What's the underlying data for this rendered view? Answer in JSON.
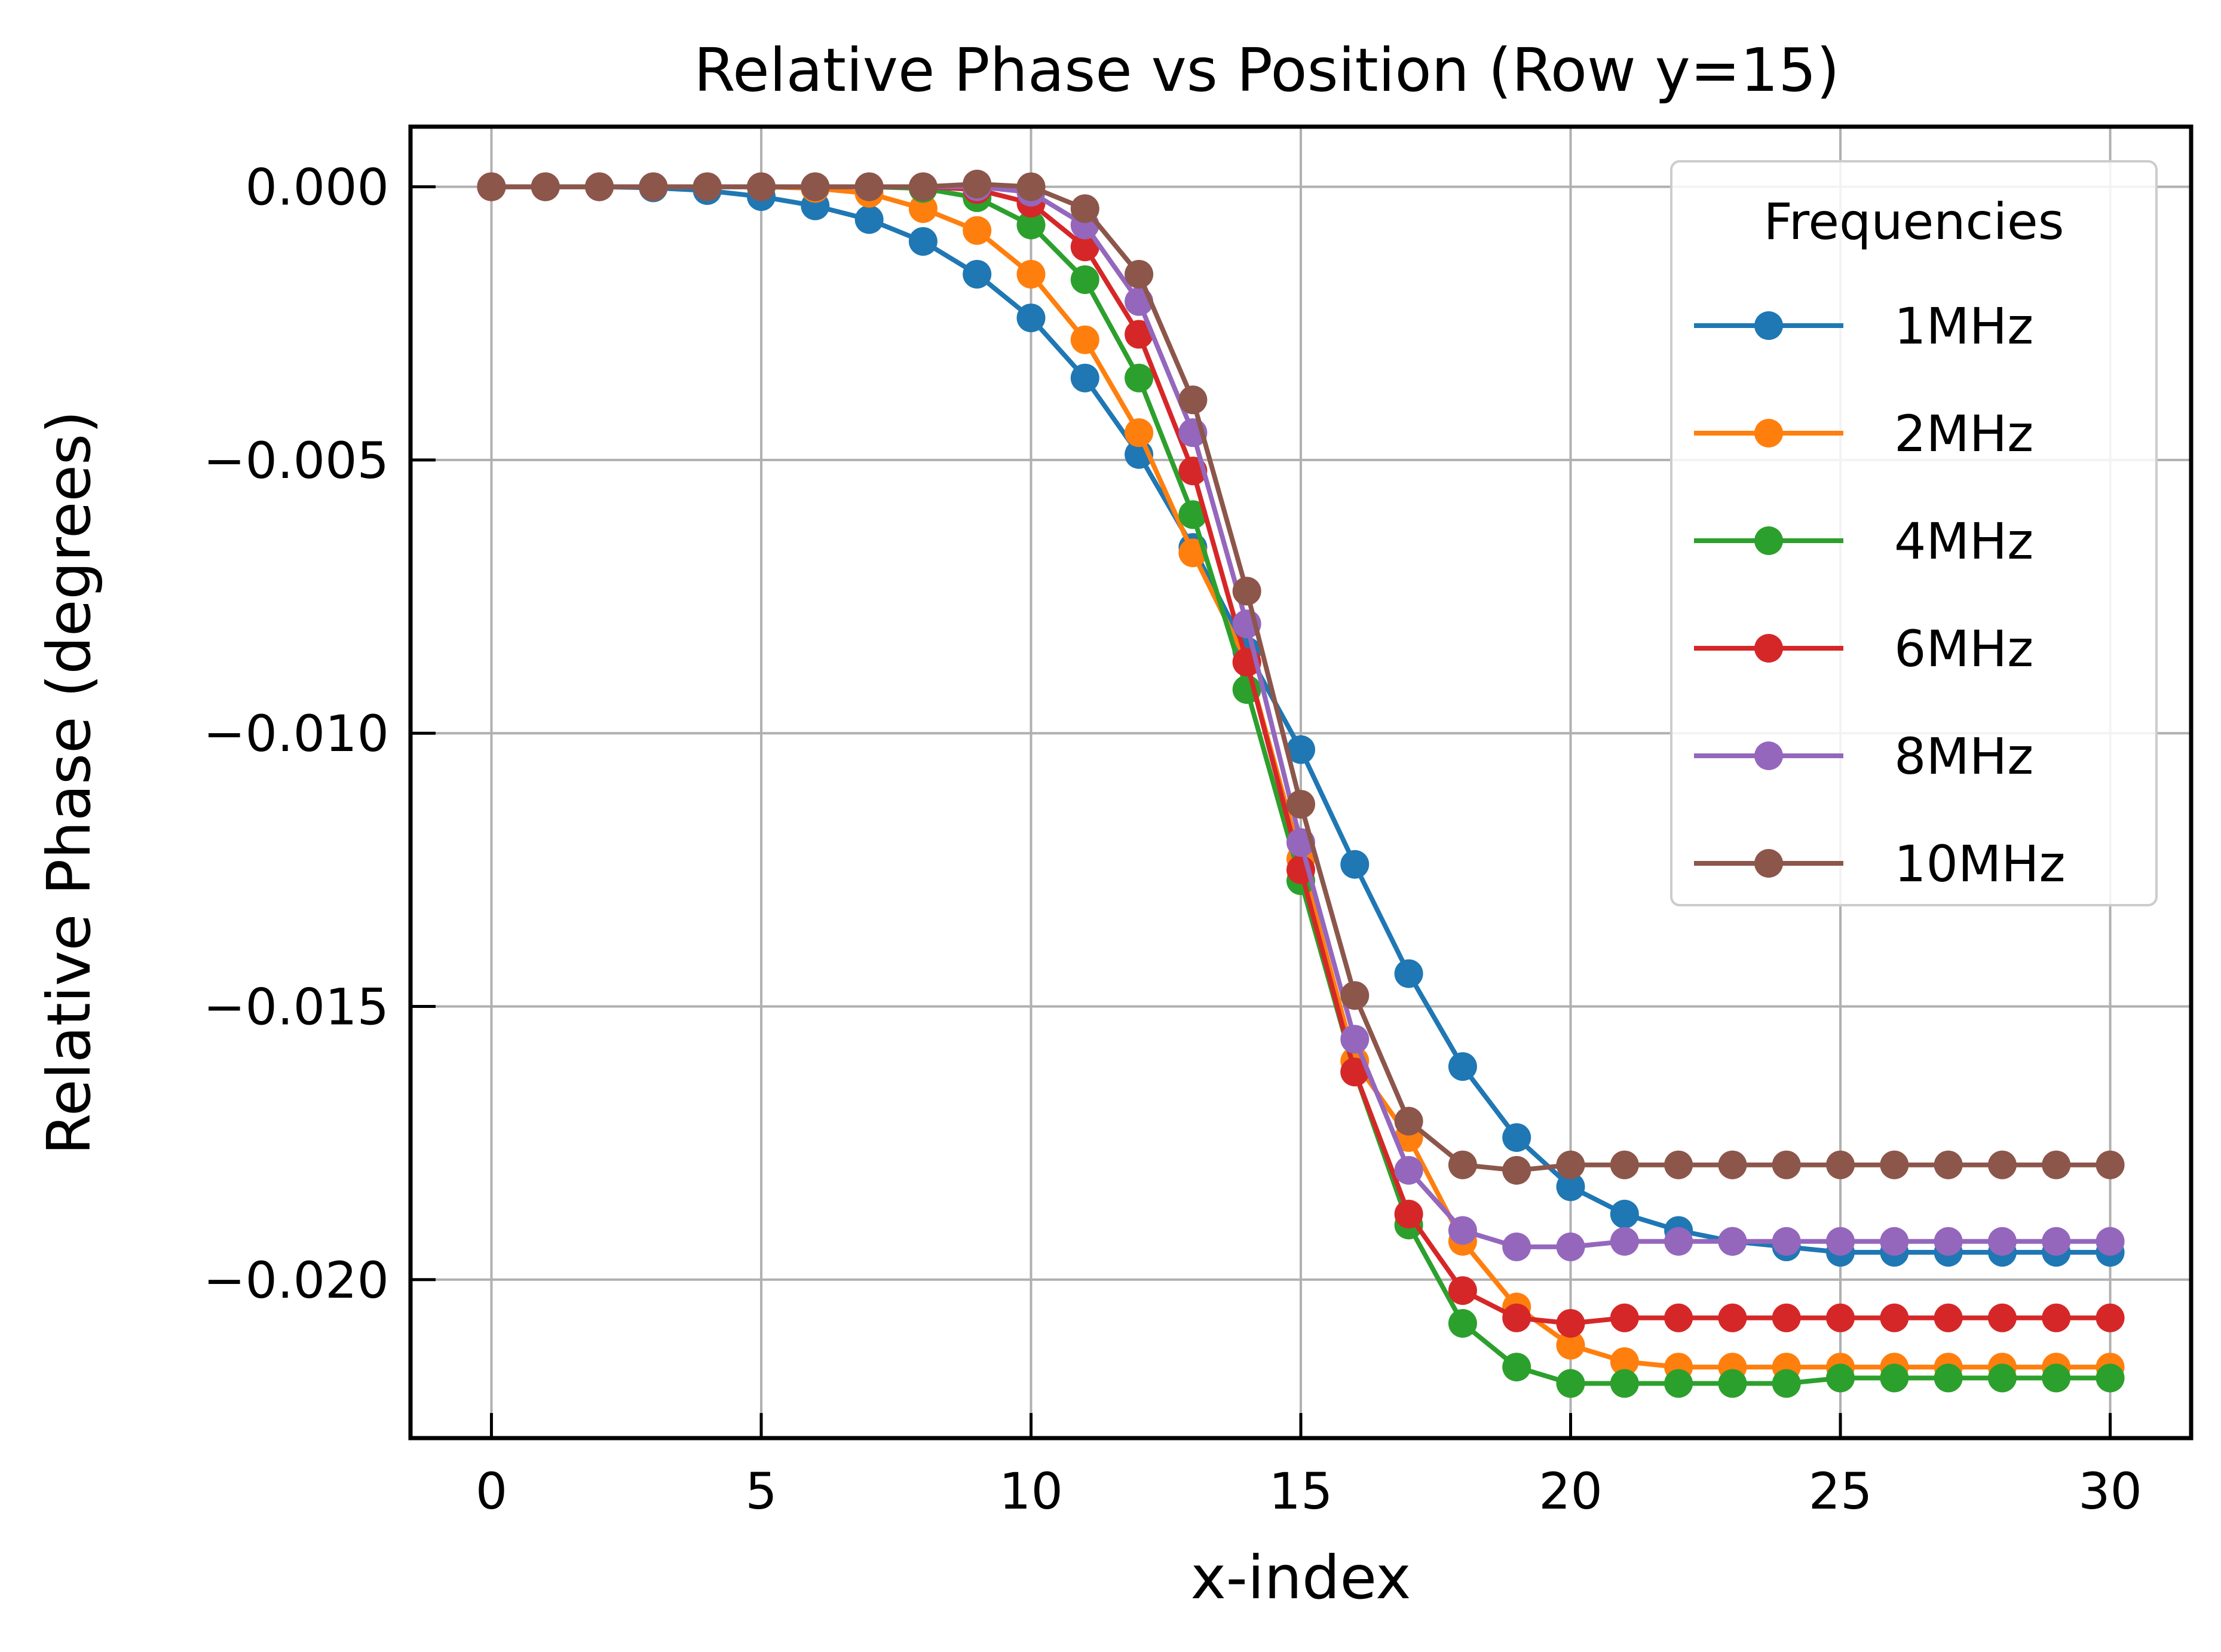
{
  "chart_data": {
    "type": "line",
    "title": "Relative Phase vs Position (Row y=15)",
    "xlabel": "x-index",
    "ylabel": "Relative Phase (degrees)",
    "xlim": [
      -1.5,
      31.5
    ],
    "ylim": [
      -0.0229,
      0.0011
    ],
    "xticks": [
      0,
      5,
      10,
      15,
      20,
      25,
      30
    ],
    "xtick_labels": [
      "0",
      "5",
      "10",
      "15",
      "20",
      "25",
      "30"
    ],
    "yticks": [
      0.0,
      -0.005,
      -0.01,
      -0.015,
      -0.02
    ],
    "ytick_labels": [
      "0.000",
      "−0.005",
      "−0.010",
      "−0.015",
      "−0.020"
    ],
    "grid": true,
    "legend_title": "Frequencies",
    "legend_position": "top-right",
    "x": [
      0,
      1,
      2,
      3,
      4,
      5,
      6,
      7,
      8,
      9,
      10,
      11,
      12,
      13,
      14,
      15,
      16,
      17,
      18,
      19,
      20,
      21,
      22,
      23,
      24,
      25,
      26,
      27,
      28,
      29,
      30
    ],
    "series": [
      {
        "name": "1MHz",
        "color": "#1f77b4",
        "values": [
          0,
          0,
          0,
          -2e-05,
          -7e-05,
          -0.00018,
          -0.00035,
          -0.0006,
          -0.001,
          -0.0016,
          -0.0024,
          -0.0035,
          -0.0049,
          -0.0066,
          -0.0085,
          -0.0103,
          -0.0124,
          -0.0144,
          -0.0161,
          -0.0174,
          -0.0183,
          -0.0188,
          -0.0191,
          -0.0193,
          -0.0194,
          -0.0195,
          -0.0195,
          -0.0195,
          -0.0195,
          -0.0195,
          -0.0195
        ]
      },
      {
        "name": "2MHz",
        "color": "#ff7f0e",
        "values": [
          0,
          0,
          0,
          0,
          0,
          0,
          -3e-05,
          -0.00012,
          -0.0004,
          -0.0008,
          -0.0016,
          -0.0028,
          -0.0045,
          -0.0067,
          -0.0087,
          -0.0123,
          -0.016,
          -0.0174,
          -0.0193,
          -0.0205,
          -0.0212,
          -0.0215,
          -0.0216,
          -0.0216,
          -0.0216,
          -0.0216,
          -0.0216,
          -0.0216,
          -0.0216,
          -0.0216,
          -0.0216
        ]
      },
      {
        "name": "4MHz",
        "color": "#2ca02c",
        "values": [
          0,
          0,
          0,
          0,
          0,
          0,
          0,
          0,
          -3e-05,
          -0.0002,
          -0.0007,
          -0.0017,
          -0.0035,
          -0.006,
          -0.0092,
          -0.0127,
          -0.0162,
          -0.019,
          -0.0208,
          -0.0216,
          -0.0219,
          -0.0219,
          -0.0219,
          -0.0219,
          -0.0219,
          -0.0218,
          -0.0218,
          -0.0218,
          -0.0218,
          -0.0218,
          -0.0218
        ]
      },
      {
        "name": "6MHz",
        "color": "#d62728",
        "values": [
          0,
          0,
          0,
          0,
          0,
          0,
          0,
          0,
          0,
          -5e-05,
          -0.0003,
          -0.0011,
          -0.0027,
          -0.0052,
          -0.0087,
          -0.0125,
          -0.0162,
          -0.0188,
          -0.0202,
          -0.0207,
          -0.0208,
          -0.0207,
          -0.0207,
          -0.0207,
          -0.0207,
          -0.0207,
          -0.0207,
          -0.0207,
          -0.0207,
          -0.0207,
          -0.0207
        ]
      },
      {
        "name": "8MHz",
        "color": "#9467bd",
        "values": [
          0,
          0,
          0,
          0,
          0,
          0,
          0,
          0,
          0,
          0,
          -0.0001,
          -0.0007,
          -0.0021,
          -0.0045,
          -0.008,
          -0.012,
          -0.0156,
          -0.018,
          -0.0191,
          -0.0194,
          -0.0194,
          -0.0193,
          -0.0193,
          -0.0193,
          -0.0193,
          -0.0193,
          -0.0193,
          -0.0193,
          -0.0193,
          -0.0193,
          -0.0193
        ]
      },
      {
        "name": "10MHz",
        "color": "#8c564b",
        "values": [
          0,
          0,
          0,
          0,
          0,
          0,
          0,
          0,
          0,
          5e-05,
          0,
          -0.0004,
          -0.0016,
          -0.0039,
          -0.0074,
          -0.0113,
          -0.0148,
          -0.0171,
          -0.0179,
          -0.018,
          -0.0179,
          -0.0179,
          -0.0179,
          -0.0179,
          -0.0179,
          -0.0179,
          -0.0179,
          -0.0179,
          -0.0179,
          -0.0179,
          -0.0179
        ]
      }
    ]
  }
}
